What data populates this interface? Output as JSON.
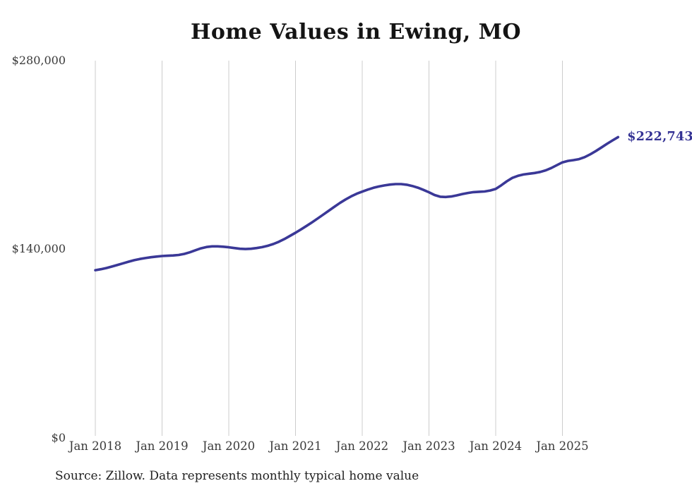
{
  "title": "Home Values in Ewing, MO",
  "source_note": "Source: Zillow. Data represents monthly typical home value",
  "end_label": "$222,743",
  "colors": {
    "line": "#3a3897",
    "end_label": "#343294",
    "gridline": "#cccccc",
    "axis_text": "#3a3a3a",
    "title_text": "#141414",
    "source_text": "#222222",
    "background": "#ffffff"
  },
  "chart_data": {
    "type": "line",
    "title": "Home Values in Ewing, MO",
    "xlabel": "",
    "ylabel": "",
    "ylim": [
      0,
      280000
    ],
    "grid": "vertical-only",
    "legend": "none",
    "x_monthly_start": "2018-01",
    "x_monthly_end": "2025-11",
    "x_tick_labels": [
      "Jan 2018",
      "Jan 2019",
      "Jan 2020",
      "Jan 2021",
      "Jan 2022",
      "Jan 2023",
      "Jan 2024",
      "Jan 2025"
    ],
    "y_ticks": [
      {
        "value": 0,
        "label": "$0"
      },
      {
        "value": 140000,
        "label": "$140,000"
      },
      {
        "value": 280000,
        "label": "$280,000"
      }
    ],
    "series": [
      {
        "name": "Typical home value",
        "unit": "USD",
        "last_value": 222743,
        "last_value_label": "$222,743",
        "monthly_values": [
          124000,
          124700,
          125600,
          126700,
          127900,
          129100,
          130300,
          131400,
          132300,
          133000,
          133600,
          134100,
          134500,
          134700,
          134900,
          135300,
          136100,
          137300,
          138800,
          140200,
          141200,
          141700,
          141700,
          141400,
          141000,
          140400,
          139900,
          139700,
          139900,
          140400,
          141100,
          142100,
          143400,
          145100,
          147100,
          149400,
          151800,
          154300,
          156900,
          159600,
          162400,
          165300,
          168200,
          171100,
          173900,
          176500,
          178800,
          180700,
          182300,
          183800,
          185100,
          186100,
          186900,
          187500,
          187900,
          187900,
          187400,
          186500,
          185200,
          183600,
          181800,
          179800,
          178500,
          178300,
          178700,
          179500,
          180500,
          181300,
          181900,
          182200,
          182400,
          183100,
          184300,
          187000,
          190000,
          192500,
          194000,
          195000,
          195600,
          196100,
          196900,
          198100,
          199800,
          201900,
          204000,
          205100,
          205700,
          206400,
          207900,
          210000,
          212400,
          215000,
          217700,
          220300,
          222743
        ]
      }
    ]
  }
}
